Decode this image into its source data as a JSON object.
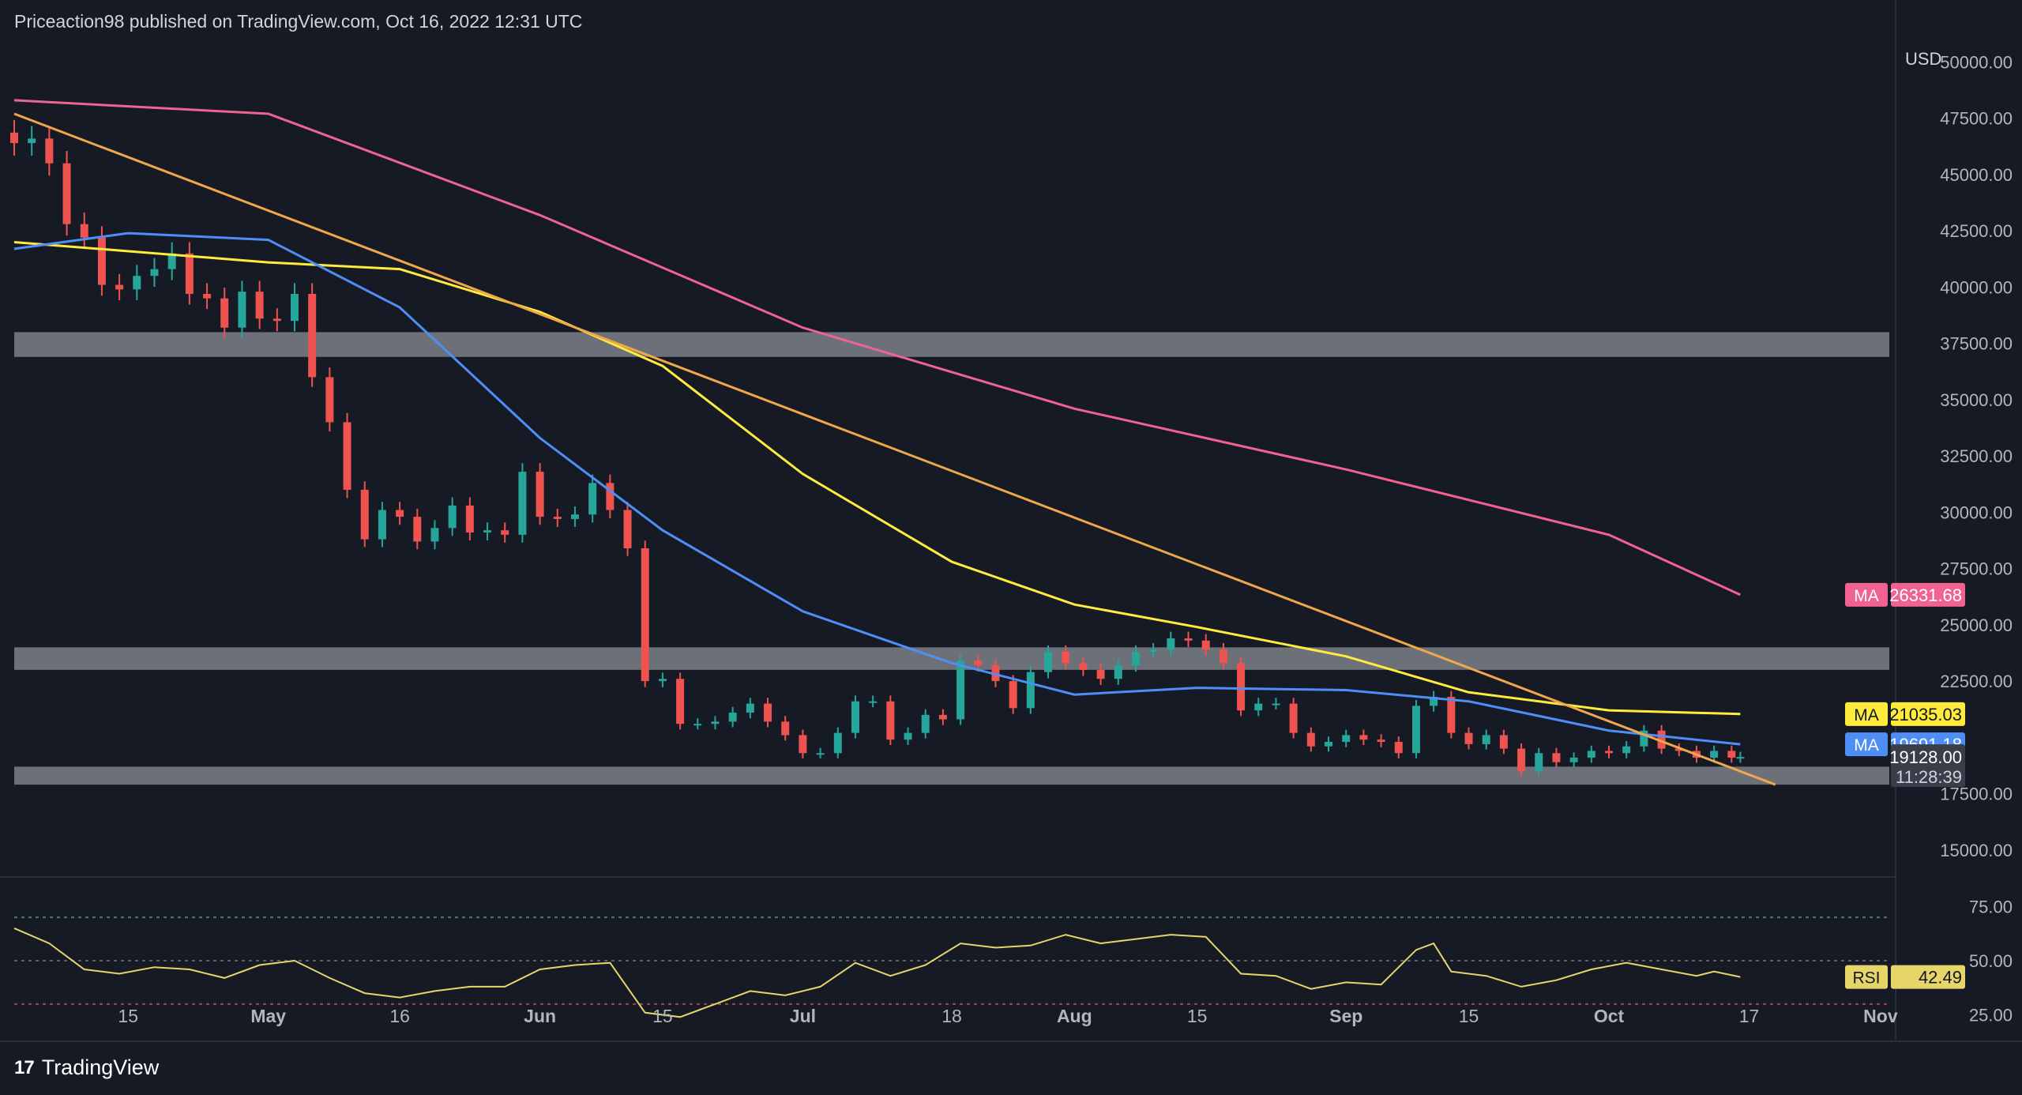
{
  "header": {
    "attribution": "Priceaction98 published on TradingView.com, Oct 16, 2022 12:31 UTC"
  },
  "footer": {
    "logo": "17",
    "brand": "TradingView"
  },
  "colors": {
    "background": "#161a25",
    "grid": "#2a2e39",
    "up": "#26a69a",
    "down": "#ef5350",
    "ma200": "#f06292",
    "ma100": "#ffeb3b",
    "ma50": "#4f8ef7",
    "trendline": "#f0a64a",
    "zone": "#8a8d96",
    "rsi": "#e6d66a"
  },
  "chart_data": [
    {
      "type": "candlestick",
      "symbol_currency": "USD",
      "ylim": [
        13800,
        51000
      ],
      "y_ticks": [
        "50000.00",
        "47500.00",
        "45000.00",
        "42500.00",
        "40000.00",
        "37500.00",
        "35000.00",
        "32500.00",
        "30000.00",
        "27500.00",
        "25000.00",
        "22500.00",
        "17500.00",
        "15000.00"
      ],
      "x_ticks": [
        "15",
        "May",
        "16",
        "Jun",
        "15",
        "Jul",
        "18",
        "Aug",
        "15",
        "Sep",
        "15",
        "Oct",
        "17",
        "Nov"
      ],
      "x_tick_dates": [
        "2022-04-15",
        "2022-05-01",
        "2022-05-16",
        "2022-06-01",
        "2022-06-15",
        "2022-07-01",
        "2022-07-18",
        "2022-08-01",
        "2022-08-15",
        "2022-09-01",
        "2022-09-15",
        "2022-10-01",
        "2022-10-17",
        "2022-11-01"
      ],
      "date_range": [
        "2022-04-02",
        "2022-11-02"
      ],
      "daily_close": [
        [
          "2022-04-02",
          46400
        ],
        [
          "2022-04-04",
          46600
        ],
        [
          "2022-04-06",
          45500
        ],
        [
          "2022-04-08",
          42800
        ],
        [
          "2022-04-10",
          42200
        ],
        [
          "2022-04-12",
          40100
        ],
        [
          "2022-04-14",
          39900
        ],
        [
          "2022-04-16",
          40500
        ],
        [
          "2022-04-18",
          40800
        ],
        [
          "2022-04-20",
          41500
        ],
        [
          "2022-04-22",
          39700
        ],
        [
          "2022-04-24",
          39500
        ],
        [
          "2022-04-26",
          38200
        ],
        [
          "2022-04-28",
          39800
        ],
        [
          "2022-04-30",
          38600
        ],
        [
          "2022-05-02",
          38500
        ],
        [
          "2022-05-04",
          39700
        ],
        [
          "2022-05-06",
          36000
        ],
        [
          "2022-05-08",
          34000
        ],
        [
          "2022-05-10",
          31000
        ],
        [
          "2022-05-12",
          28800
        ],
        [
          "2022-05-14",
          30100
        ],
        [
          "2022-05-16",
          29800
        ],
        [
          "2022-05-18",
          28700
        ],
        [
          "2022-05-20",
          29300
        ],
        [
          "2022-05-22",
          30300
        ],
        [
          "2022-05-24",
          29100
        ],
        [
          "2022-05-26",
          29200
        ],
        [
          "2022-05-28",
          29000
        ],
        [
          "2022-05-30",
          31800
        ],
        [
          "2022-06-01",
          29800
        ],
        [
          "2022-06-03",
          29700
        ],
        [
          "2022-06-05",
          29900
        ],
        [
          "2022-06-07",
          31300
        ],
        [
          "2022-06-09",
          30100
        ],
        [
          "2022-06-11",
          28400
        ],
        [
          "2022-06-13",
          22500
        ],
        [
          "2022-06-15",
          22600
        ],
        [
          "2022-06-17",
          20600
        ],
        [
          "2022-06-19",
          20600
        ],
        [
          "2022-06-21",
          20700
        ],
        [
          "2022-06-23",
          21100
        ],
        [
          "2022-06-25",
          21500
        ],
        [
          "2022-06-27",
          20700
        ],
        [
          "2022-06-29",
          20100
        ],
        [
          "2022-07-01",
          19300
        ],
        [
          "2022-07-03",
          19300
        ],
        [
          "2022-07-05",
          20200
        ],
        [
          "2022-07-07",
          21600
        ],
        [
          "2022-07-09",
          21600
        ],
        [
          "2022-07-11",
          19900
        ],
        [
          "2022-07-13",
          20200
        ],
        [
          "2022-07-15",
          21000
        ],
        [
          "2022-07-17",
          20800
        ],
        [
          "2022-07-19",
          23400
        ],
        [
          "2022-07-21",
          23200
        ],
        [
          "2022-07-23",
          22500
        ],
        [
          "2022-07-25",
          21300
        ],
        [
          "2022-07-27",
          22900
        ],
        [
          "2022-07-29",
          23800
        ],
        [
          "2022-07-31",
          23300
        ],
        [
          "2022-08-02",
          23000
        ],
        [
          "2022-08-04",
          22600
        ],
        [
          "2022-08-06",
          23200
        ],
        [
          "2022-08-08",
          23800
        ],
        [
          "2022-08-10",
          23900
        ],
        [
          "2022-08-12",
          24400
        ],
        [
          "2022-08-14",
          24300
        ],
        [
          "2022-08-16",
          23900
        ],
        [
          "2022-08-18",
          23300
        ],
        [
          "2022-08-20",
          21200
        ],
        [
          "2022-08-22",
          21500
        ],
        [
          "2022-08-24",
          21500
        ],
        [
          "2022-08-26",
          20200
        ],
        [
          "2022-08-28",
          19600
        ],
        [
          "2022-08-30",
          19800
        ],
        [
          "2022-09-01",
          20100
        ],
        [
          "2022-09-03",
          19900
        ],
        [
          "2022-09-05",
          19800
        ],
        [
          "2022-09-07",
          19300
        ],
        [
          "2022-09-09",
          21400
        ],
        [
          "2022-09-11",
          21800
        ],
        [
          "2022-09-13",
          20200
        ],
        [
          "2022-09-15",
          19700
        ],
        [
          "2022-09-17",
          20100
        ],
        [
          "2022-09-19",
          19500
        ],
        [
          "2022-09-21",
          18500
        ],
        [
          "2022-09-23",
          19300
        ],
        [
          "2022-09-25",
          18900
        ],
        [
          "2022-09-27",
          19100
        ],
        [
          "2022-09-29",
          19400
        ],
        [
          "2022-10-01",
          19300
        ],
        [
          "2022-10-03",
          19600
        ],
        [
          "2022-10-05",
          20300
        ],
        [
          "2022-10-07",
          19500
        ],
        [
          "2022-10-09",
          19400
        ],
        [
          "2022-10-11",
          19100
        ],
        [
          "2022-10-13",
          19400
        ],
        [
          "2022-10-15",
          19100
        ],
        [
          "2022-10-16",
          19128
        ]
      ],
      "moving_averages": [
        {
          "label": "MA",
          "value": "26331.68",
          "color": "#f06292",
          "points": [
            [
              "2022-04-02",
              48300
            ],
            [
              "2022-05-01",
              47700
            ],
            [
              "2022-06-01",
              43200
            ],
            [
              "2022-07-01",
              38200
            ],
            [
              "2022-08-01",
              34600
            ],
            [
              "2022-09-01",
              31900
            ],
            [
              "2022-10-01",
              29000
            ],
            [
              "2022-10-16",
              26332
            ]
          ]
        },
        {
          "label": "MA",
          "value": "21035.03",
          "color": "#ffeb3b",
          "points": [
            [
              "2022-04-02",
              42000
            ],
            [
              "2022-05-01",
              41100
            ],
            [
              "2022-05-16",
              40800
            ],
            [
              "2022-06-01",
              38900
            ],
            [
              "2022-06-15",
              36500
            ],
            [
              "2022-07-01",
              31700
            ],
            [
              "2022-07-18",
              27800
            ],
            [
              "2022-08-01",
              25900
            ],
            [
              "2022-08-15",
              24900
            ],
            [
              "2022-09-01",
              23600
            ],
            [
              "2022-09-15",
              22000
            ],
            [
              "2022-10-01",
              21200
            ],
            [
              "2022-10-16",
              21035
            ]
          ]
        },
        {
          "label": "MA",
          "value": "19691.18",
          "color": "#4f8ef7",
          "points": [
            [
              "2022-04-02",
              41700
            ],
            [
              "2022-04-15",
              42400
            ],
            [
              "2022-05-01",
              42100
            ],
            [
              "2022-05-16",
              39100
            ],
            [
              "2022-06-01",
              33300
            ],
            [
              "2022-06-15",
              29200
            ],
            [
              "2022-07-01",
              25600
            ],
            [
              "2022-07-18",
              23300
            ],
            [
              "2022-08-01",
              21900
            ],
            [
              "2022-08-15",
              22200
            ],
            [
              "2022-09-01",
              22100
            ],
            [
              "2022-09-15",
              21600
            ],
            [
              "2022-10-01",
              20300
            ],
            [
              "2022-10-16",
              19691
            ]
          ]
        }
      ],
      "trendline": [
        [
          "2022-04-02",
          47700
        ],
        [
          "2022-10-20",
          17900
        ]
      ],
      "zones": [
        [
          36900,
          38000
        ],
        [
          23000,
          24000
        ],
        [
          17900,
          18700
        ]
      ],
      "last_price": {
        "value": "19128.00",
        "countdown": "11:28:39"
      }
    },
    {
      "type": "line",
      "series": [
        {
          "name": "RSI",
          "last": "42.49"
        }
      ],
      "ylim": [
        15,
        85
      ],
      "y_ticks": [
        "75.00",
        "50.00",
        "25.00"
      ],
      "levels": [
        70,
        50,
        30
      ],
      "values": [
        [
          "2022-04-02",
          65
        ],
        [
          "2022-04-06",
          58
        ],
        [
          "2022-04-10",
          46
        ],
        [
          "2022-04-14",
          44
        ],
        [
          "2022-04-18",
          47
        ],
        [
          "2022-04-22",
          46
        ],
        [
          "2022-04-26",
          42
        ],
        [
          "2022-04-30",
          48
        ],
        [
          "2022-05-04",
          50
        ],
        [
          "2022-05-08",
          42
        ],
        [
          "2022-05-12",
          35
        ],
        [
          "2022-05-16",
          33
        ],
        [
          "2022-05-20",
          36
        ],
        [
          "2022-05-24",
          38
        ],
        [
          "2022-05-28",
          38
        ],
        [
          "2022-06-01",
          46
        ],
        [
          "2022-06-05",
          48
        ],
        [
          "2022-06-09",
          49
        ],
        [
          "2022-06-13",
          26
        ],
        [
          "2022-06-17",
          24
        ],
        [
          "2022-06-21",
          30
        ],
        [
          "2022-06-25",
          36
        ],
        [
          "2022-06-29",
          34
        ],
        [
          "2022-07-03",
          38
        ],
        [
          "2022-07-07",
          49
        ],
        [
          "2022-07-11",
          43
        ],
        [
          "2022-07-15",
          48
        ],
        [
          "2022-07-19",
          58
        ],
        [
          "2022-07-23",
          56
        ],
        [
          "2022-07-27",
          57
        ],
        [
          "2022-07-31",
          62
        ],
        [
          "2022-08-04",
          58
        ],
        [
          "2022-08-08",
          60
        ],
        [
          "2022-08-12",
          62
        ],
        [
          "2022-08-16",
          61
        ],
        [
          "2022-08-20",
          44
        ],
        [
          "2022-08-24",
          43
        ],
        [
          "2022-08-28",
          37
        ],
        [
          "2022-09-01",
          40
        ],
        [
          "2022-09-05",
          39
        ],
        [
          "2022-09-09",
          55
        ],
        [
          "2022-09-11",
          58
        ],
        [
          "2022-09-13",
          45
        ],
        [
          "2022-09-17",
          43
        ],
        [
          "2022-09-21",
          38
        ],
        [
          "2022-09-25",
          41
        ],
        [
          "2022-09-29",
          46
        ],
        [
          "2022-10-03",
          49
        ],
        [
          "2022-10-07",
          46
        ],
        [
          "2022-10-11",
          43
        ],
        [
          "2022-10-13",
          45
        ],
        [
          "2022-10-16",
          42.49
        ]
      ]
    }
  ]
}
